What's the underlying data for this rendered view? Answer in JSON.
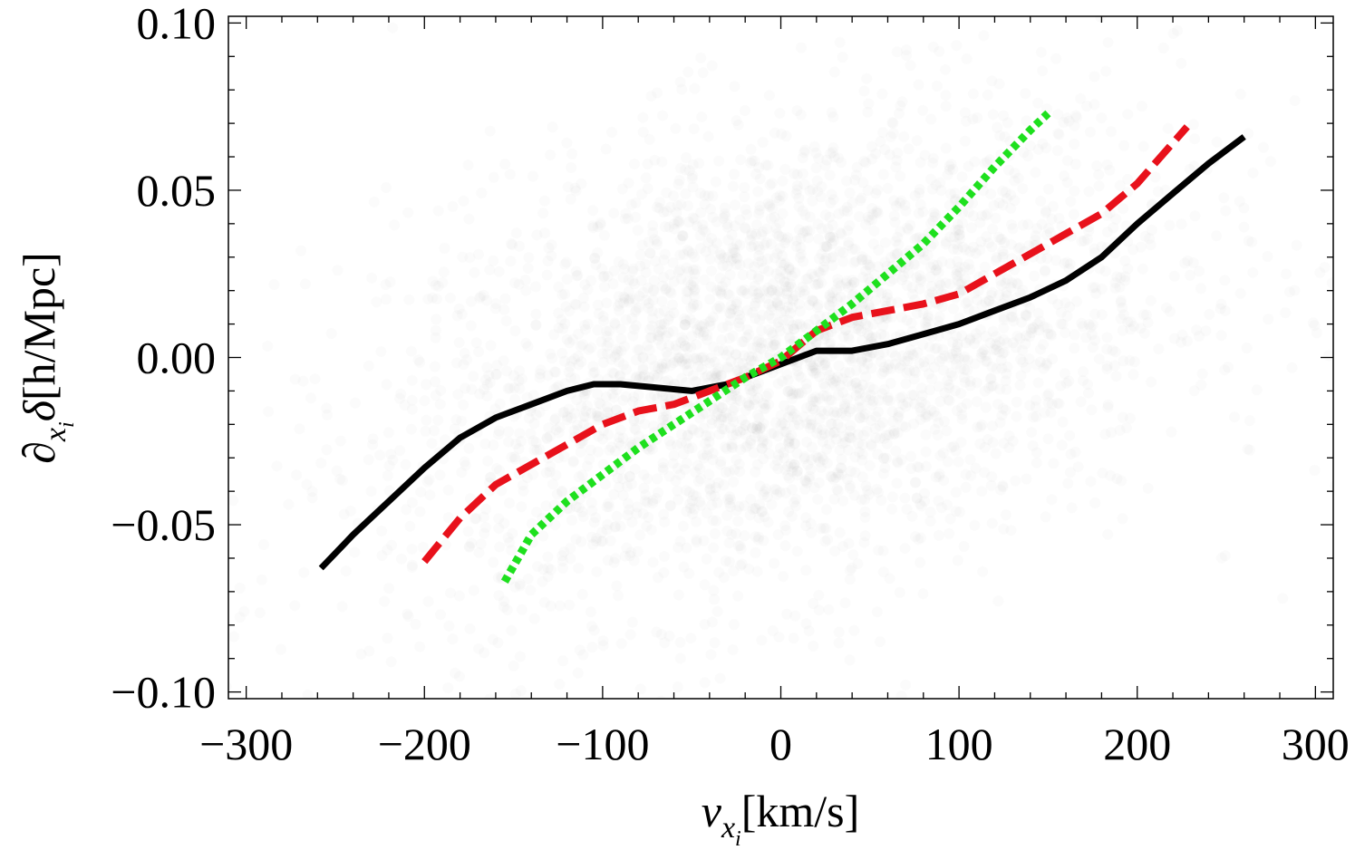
{
  "chart_data": {
    "type": "line",
    "title": "",
    "xlabel": {
      "main": "v",
      "sub1": "x",
      "sub2": "i",
      "unit": "[km/s]"
    },
    "ylabel": {
      "main": "∂",
      "sub1": "x",
      "sub2": "i",
      "var": "δ",
      "unit": "[h/Mpc]"
    },
    "xlim": [
      -310,
      310
    ],
    "ylim": [
      -0.102,
      0.102
    ],
    "x_ticks": [
      -300,
      -200,
      -100,
      0,
      100,
      200,
      300
    ],
    "x_tick_labels": [
      "−300",
      "−200",
      "−100",
      "0",
      "100",
      "200",
      "300"
    ],
    "y_ticks": [
      0.1,
      0.05,
      0.0,
      -0.05,
      -0.1
    ],
    "y_tick_labels": [
      "0.10",
      "0.05",
      "0.00",
      "−0.05",
      "−0.10"
    ],
    "scatter_background": {
      "description": "dense cloud of faint grey points",
      "color": "#9a9a9a",
      "center": [
        0,
        0
      ],
      "x_spread": 110,
      "y_spread": 0.035,
      "slope": 0.00012
    },
    "series": [
      {
        "name": "black-solid",
        "color": "#000000",
        "style": "solid",
        "x": [
          -258,
          -240,
          -220,
          -200,
          -180,
          -160,
          -140,
          -120,
          -105,
          -90,
          -70,
          -50,
          -30,
          -10,
          0,
          10,
          20,
          30,
          40,
          60,
          80,
          100,
          120,
          140,
          160,
          180,
          200,
          220,
          240,
          260
        ],
        "y": [
          -0.063,
          -0.053,
          -0.043,
          -0.033,
          -0.024,
          -0.018,
          -0.014,
          -0.01,
          -0.008,
          -0.008,
          -0.009,
          -0.01,
          -0.008,
          -0.004,
          -0.002,
          0.0,
          0.002,
          0.002,
          0.002,
          0.004,
          0.007,
          0.01,
          0.014,
          0.018,
          0.023,
          0.03,
          0.04,
          0.049,
          0.058,
          0.066
        ]
      },
      {
        "name": "red-dashed",
        "color": "#e8111b",
        "style": "dashed",
        "x": [
          -200,
          -180,
          -160,
          -140,
          -120,
          -100,
          -80,
          -60,
          -40,
          -20,
          0,
          20,
          40,
          60,
          80,
          100,
          120,
          140,
          160,
          180,
          200,
          228
        ],
        "y": [
          -0.061,
          -0.048,
          -0.038,
          -0.032,
          -0.026,
          -0.02,
          -0.016,
          -0.014,
          -0.01,
          -0.006,
          -0.001,
          0.008,
          0.012,
          0.014,
          0.016,
          0.019,
          0.025,
          0.031,
          0.037,
          0.043,
          0.052,
          0.069
        ]
      },
      {
        "name": "green-dotted",
        "color": "#1ee01e",
        "style": "dotted",
        "x": [
          -155,
          -140,
          -120,
          -100,
          -80,
          -60,
          -40,
          -20,
          0,
          20,
          40,
          60,
          80,
          100,
          120,
          140,
          150
        ],
        "y": [
          -0.067,
          -0.053,
          -0.043,
          -0.035,
          -0.027,
          -0.02,
          -0.013,
          -0.006,
          0.0,
          0.008,
          0.016,
          0.025,
          0.034,
          0.045,
          0.057,
          0.068,
          0.073
        ]
      }
    ]
  }
}
